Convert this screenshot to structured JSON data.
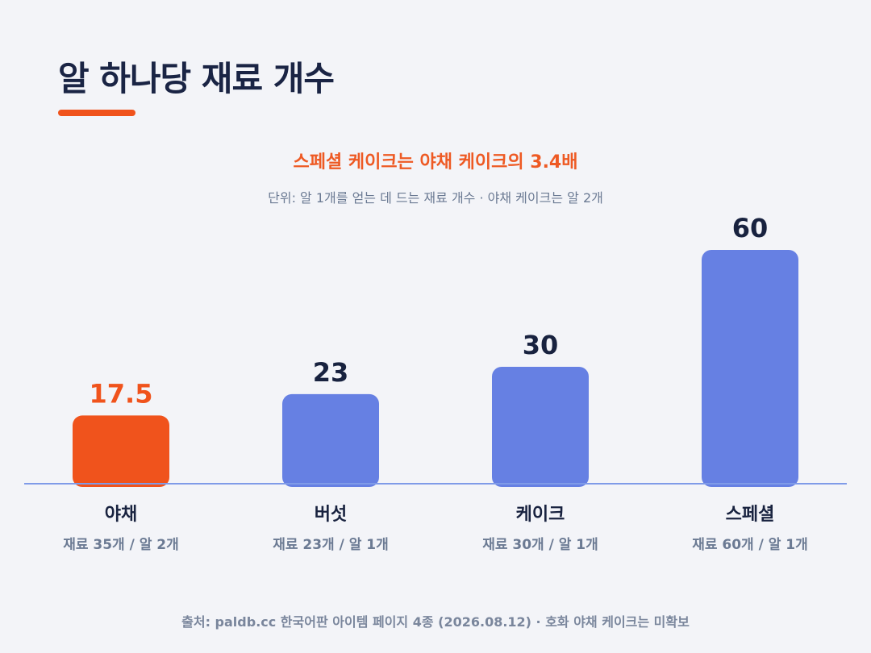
{
  "title": "알 하나당 재료 개수",
  "headline": "스페셜 케이크는 야채 케이크의 3.4배",
  "subtitle": "단위: 알 1개를 얻는 데 드는 재료 개수 · 야채 케이크는 알 2개",
  "source": "출처: paldb.cc 한국어판 아이템 페이지 4종 (2026.08.12) · 호화 야채 케이크는 미확보",
  "colors": {
    "highlight": "#f0531c",
    "bar": "#6680e3",
    "baseline": "#7f9be8",
    "value_text": "#18223f",
    "category_text": "#18223f",
    "sublabel_text": "#6b7a93"
  },
  "chart_data": {
    "type": "bar",
    "categories": [
      "야채",
      "버섯",
      "케이크",
      "스페셜"
    ],
    "values": [
      17.5,
      23,
      30,
      60
    ],
    "value_labels": [
      "17.5",
      "23",
      "30",
      "60"
    ],
    "sublabels": [
      "재료 35개 / 알 2개",
      "재료 23개 / 알 1개",
      "재료 30개 / 알 1개",
      "재료 60개 / 알 1개"
    ],
    "highlight_index": 0,
    "ylim": [
      0,
      60
    ],
    "grid": false,
    "legend": "none"
  }
}
